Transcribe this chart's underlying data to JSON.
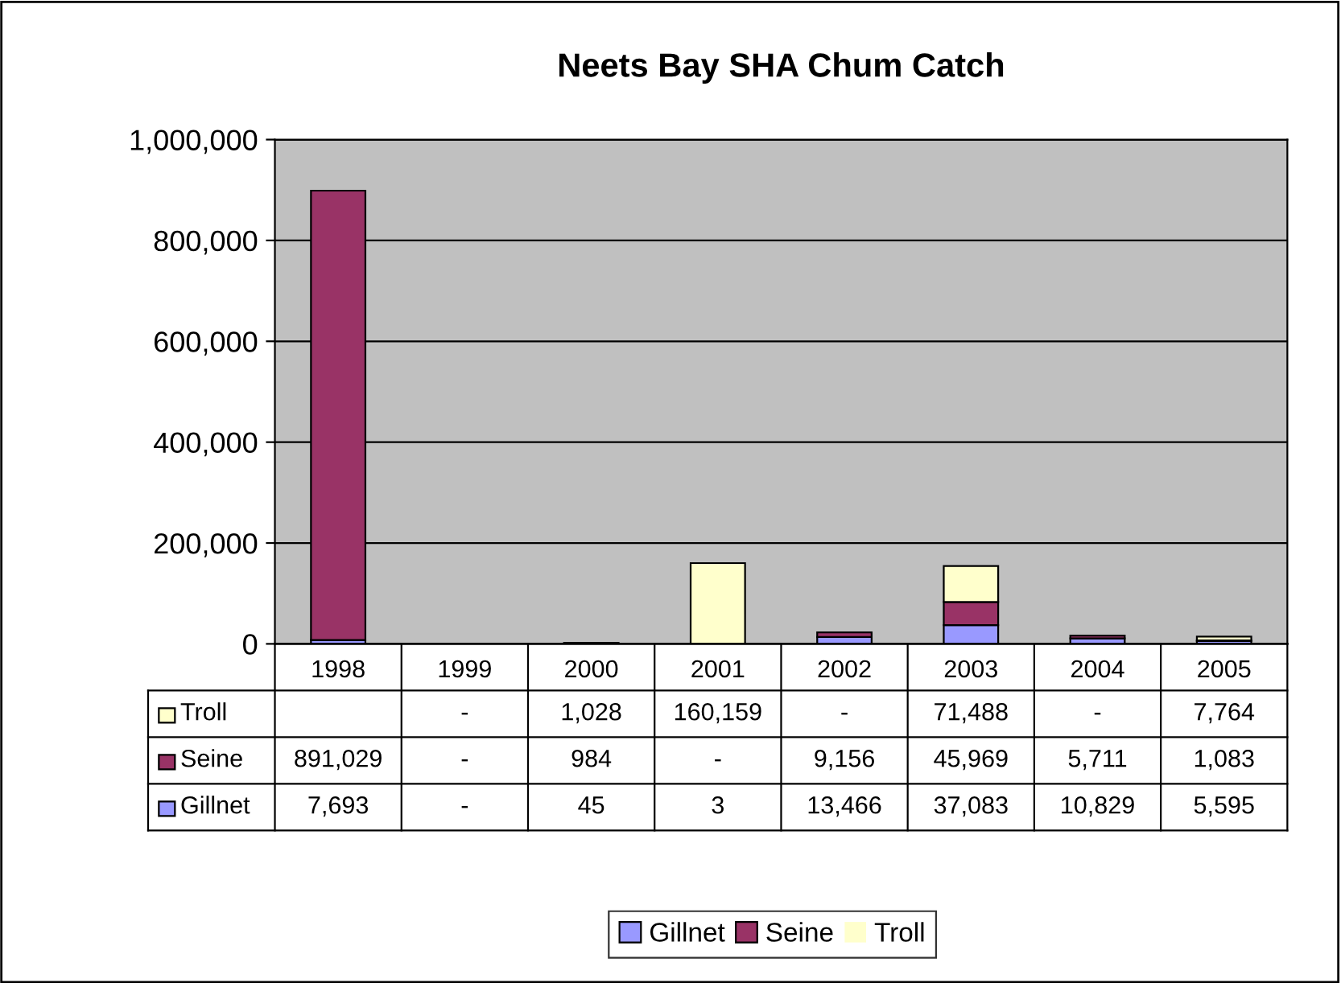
{
  "chart_data": {
    "type": "bar",
    "title": "Neets Bay SHA Chum Catch",
    "stacked": true,
    "categories": [
      "1998",
      "1999",
      "2000",
      "2001",
      "2002",
      "2003",
      "2004",
      "2005"
    ],
    "series": [
      {
        "name": "Gillnet",
        "color": "#9999ff",
        "values": [
          7693,
          0,
          45,
          3,
          13466,
          37083,
          10829,
          5595
        ],
        "value_labels": [
          "7,693",
          "-",
          "45",
          "3",
          "13,466",
          "37,083",
          "10,829",
          "5,595"
        ]
      },
      {
        "name": "Seine",
        "color": "#993366",
        "values": [
          891029,
          0,
          984,
          0,
          9156,
          45969,
          5711,
          1083
        ],
        "value_labels": [
          "891,029",
          "-",
          "984",
          "-",
          "9,156",
          "45,969",
          "5,711",
          "1,083"
        ]
      },
      {
        "name": "Troll",
        "color": "#ffffcc",
        "values": [
          null,
          0,
          1028,
          160159,
          0,
          71488,
          0,
          7764
        ],
        "value_labels": [
          null,
          "-",
          "1,028",
          "160,159",
          "-",
          "71,488",
          "-",
          "7,764"
        ]
      }
    ],
    "ylim": [
      0,
      1000000
    ],
    "yticks": [
      0,
      {
        "value": 200000,
        "label": "200,000"
      },
      {
        "value": 400000,
        "label": "400,000"
      },
      {
        "value": 600000,
        "label": "600,000"
      },
      {
        "value": 800000,
        "label": "800,000"
      },
      {
        "value": 1000000,
        "label": "1,000,000"
      }
    ],
    "grid": "y",
    "legend": "bottom"
  }
}
